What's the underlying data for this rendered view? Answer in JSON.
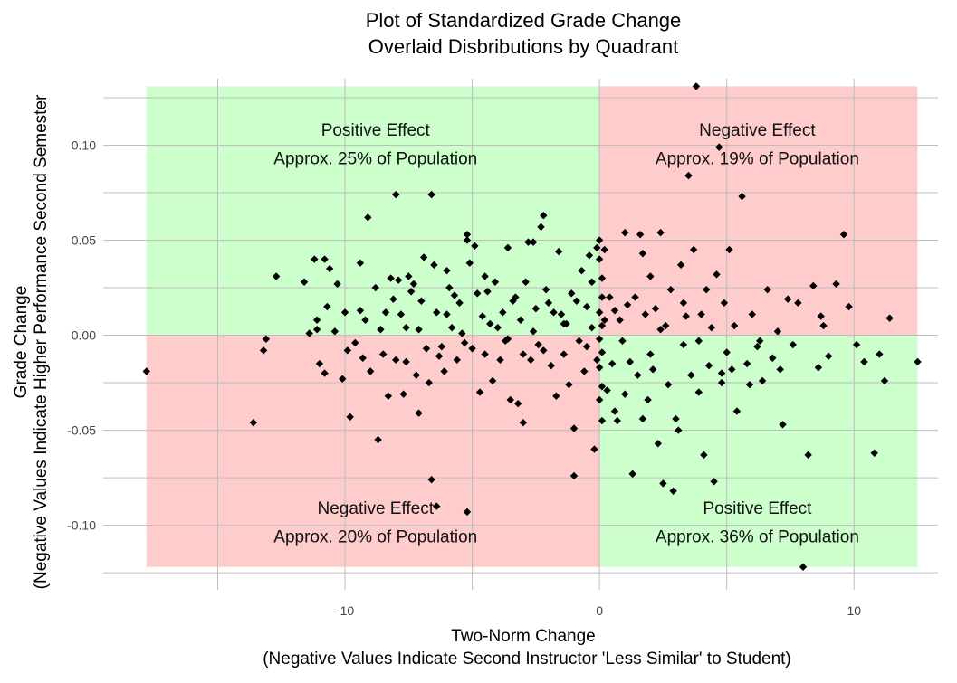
{
  "chart_data": {
    "type": "scatter",
    "title": [
      "Plot of Standardized Grade Change",
      "Overlaid Disbributions by Quadrant"
    ],
    "xlabel": [
      "Two-Norm Change",
      "(Negative Values Indicate Second Instructor 'Less Similar' to Student)"
    ],
    "ylabel": [
      "Grade Change",
      "(Negative Values Indicate Higher Performance Second Semester"
    ],
    "xlim": [
      -19.5,
      13.3
    ],
    "ylim": [
      -0.134,
      0.135
    ],
    "x_ticks": [
      -10,
      0,
      10
    ],
    "x_tick_labels": [
      "-10",
      "0",
      "10"
    ],
    "y_ticks": [
      -0.1,
      -0.05,
      0.0,
      0.05,
      0.1
    ],
    "y_tick_labels": [
      "-0.10",
      "-0.05",
      "0.00",
      "0.05",
      "0.10"
    ],
    "grid": true,
    "point_color": "#000000",
    "quadrants": [
      {
        "name": "top-left",
        "x": [
          -17.8,
          0
        ],
        "y": [
          0,
          0.131
        ],
        "color": "#ccffcc",
        "lines": [
          "Positive Effect",
          "Approx. 25% of Population"
        ]
      },
      {
        "name": "top-right",
        "x": [
          0,
          12.5
        ],
        "y": [
          0,
          0.131
        ],
        "color": "#ffcccc",
        "lines": [
          "Negative Effect",
          "Approx. 19% of Population"
        ]
      },
      {
        "name": "bottom-left",
        "x": [
          -17.8,
          0
        ],
        "y": [
          -0.122,
          0
        ],
        "color": "#ffcccc",
        "lines": [
          "Negative Effect",
          "Approx. 20% of Population"
        ]
      },
      {
        "name": "bottom-right",
        "x": [
          0,
          12.5
        ],
        "y": [
          -0.122,
          0
        ],
        "color": "#ccffcc",
        "lines": [
          "Positive Effect",
          "Approx. 36% of Population"
        ]
      }
    ],
    "quadrant_label_anchors": [
      {
        "x": -8.8,
        "y": [
          0.105,
          0.09
        ]
      },
      {
        "x": 6.2,
        "y": [
          0.105,
          0.09
        ]
      },
      {
        "x": -8.8,
        "y": [
          -0.094,
          -0.109
        ]
      },
      {
        "x": 6.2,
        "y": [
          -0.094,
          -0.109
        ]
      }
    ],
    "points": [
      [
        -17.8,
        -0.019
      ],
      [
        -13.6,
        -0.046
      ],
      [
        -13.1,
        -0.002
      ],
      [
        -13.2,
        -0.008
      ],
      [
        -12.7,
        0.031
      ],
      [
        -11.6,
        0.028
      ],
      [
        -11.4,
        0.001
      ],
      [
        -11.2,
        0.04
      ],
      [
        -11.1,
        0.003
      ],
      [
        -11.1,
        0.008
      ],
      [
        -11.0,
        -0.015
      ],
      [
        -10.8,
        -0.02
      ],
      [
        -10.8,
        0.04
      ],
      [
        -10.4,
        0.002
      ],
      [
        -10.6,
        0.035
      ],
      [
        -10.3,
        0.027
      ],
      [
        -10.0,
        0.012
      ],
      [
        -10.1,
        -0.023
      ],
      [
        -9.8,
        -0.043
      ],
      [
        -9.9,
        -0.008
      ],
      [
        -9.6,
        -0.004
      ],
      [
        -9.4,
        0.038
      ],
      [
        -9.4,
        0.013
      ],
      [
        -9.1,
        0.062
      ],
      [
        -9.2,
        0.008
      ],
      [
        -9.0,
        -0.019
      ],
      [
        -8.8,
        0.025
      ],
      [
        -8.7,
        -0.055
      ],
      [
        -8.6,
        0.003
      ],
      [
        -8.5,
        -0.01
      ],
      [
        -8.4,
        0.012
      ],
      [
        -8.3,
        -0.032
      ],
      [
        -8.2,
        0.03
      ],
      [
        -8.1,
        0.019
      ],
      [
        -8.0,
        0.074
      ],
      [
        -7.9,
        0.029
      ],
      [
        -7.8,
        0.011
      ],
      [
        -7.7,
        -0.031
      ],
      [
        -7.6,
        -0.014
      ],
      [
        -7.5,
        0.031
      ],
      [
        -7.4,
        0.023
      ],
      [
        -7.3,
        0.027
      ],
      [
        -7.2,
        -0.021
      ],
      [
        -7.1,
        0.003
      ],
      [
        -7.0,
        0.018
      ],
      [
        -6.9,
        0.041
      ],
      [
        -6.8,
        -0.007
      ],
      [
        -6.7,
        -0.025
      ],
      [
        -6.6,
        -0.076
      ],
      [
        -6.6,
        0.074
      ],
      [
        -6.5,
        0.037
      ],
      [
        -6.4,
        0.012
      ],
      [
        -6.3,
        -0.011
      ],
      [
        -6.2,
        -0.006
      ],
      [
        -6.1,
        -0.019
      ],
      [
        -6.0,
        0.011
      ],
      [
        -5.9,
        0.025
      ],
      [
        -5.8,
        0.004
      ],
      [
        -5.7,
        0.021
      ],
      [
        -5.6,
        -0.013
      ],
      [
        -5.5,
        0.017
      ],
      [
        -5.4,
        0.001
      ],
      [
        -5.3,
        -0.004
      ],
      [
        -5.2,
        0.05
      ],
      [
        -5.2,
        0.053
      ],
      [
        -5.1,
        0.038
      ],
      [
        -5.0,
        -0.007
      ],
      [
        -4.9,
        0.047
      ],
      [
        -4.8,
        0.022
      ],
      [
        -4.7,
        -0.03
      ],
      [
        -4.6,
        0.01
      ],
      [
        -4.5,
        -0.01
      ],
      [
        -4.4,
        0.023
      ],
      [
        -4.3,
        0.006
      ],
      [
        -4.2,
        -0.024
      ],
      [
        -4.1,
        0.028
      ],
      [
        -4.0,
        0.004
      ],
      [
        -3.9,
        -0.013
      ],
      [
        -3.8,
        0.012
      ],
      [
        -3.7,
        -0.003
      ],
      [
        -3.6,
        0.046
      ],
      [
        -3.5,
        -0.034
      ],
      [
        -3.4,
        0.018
      ],
      [
        -3.3,
        0.02
      ],
      [
        -3.2,
        -0.036
      ],
      [
        -3.1,
        0.008
      ],
      [
        -3.0,
        -0.01
      ],
      [
        -2.9,
        0.028
      ],
      [
        -2.8,
        0.049
      ],
      [
        -2.7,
        -0.013
      ],
      [
        -2.6,
        0.002
      ],
      [
        -2.5,
        0.014
      ],
      [
        -2.4,
        -0.005
      ],
      [
        -2.3,
        0.057
      ],
      [
        -2.2,
        0.063
      ],
      [
        -2.1,
        0.024
      ],
      [
        -2.0,
        0.017
      ],
      [
        -1.9,
        -0.016
      ],
      [
        -1.8,
        0.012
      ],
      [
        -1.7,
        -0.032
      ],
      [
        -1.6,
        0.044
      ],
      [
        -1.5,
        0.011
      ],
      [
        -1.4,
        -0.01
      ],
      [
        -1.3,
        0.006
      ],
      [
        -1.2,
        -0.026
      ],
      [
        -1.1,
        0.022
      ],
      [
        -1.0,
        -0.049
      ],
      [
        -0.9,
        0.018
      ],
      [
        -0.8,
        -0.003
      ],
      [
        -0.7,
        0.034
      ],
      [
        -0.6,
        -0.019
      ],
      [
        -0.5,
        0.015
      ],
      [
        -0.4,
        0.042
      ],
      [
        -0.3,
        0.028
      ],
      [
        -0.2,
        -0.06
      ],
      [
        -0.1,
        0.046
      ],
      [
        -0.1,
        -0.013
      ],
      [
        -0.3,
        0.004
      ],
      [
        -1.0,
        -0.074
      ],
      [
        -5.2,
        -0.093
      ],
      [
        -6.4,
        -0.09
      ],
      [
        -3.0,
        -0.046
      ],
      [
        -7.1,
        -0.041
      ],
      [
        -8.0,
        -0.013
      ],
      [
        -2.6,
        0.049
      ],
      [
        0.0,
        0.05
      ],
      [
        0.0,
        0.04
      ],
      [
        0.1,
        0.03
      ],
      [
        0.1,
        0.02
      ],
      [
        0.0,
        0.012
      ],
      [
        0.1,
        0.005
      ],
      [
        0.0,
        -0.002
      ],
      [
        0.1,
        -0.009
      ],
      [
        0.0,
        -0.017
      ],
      [
        0.1,
        -0.027
      ],
      [
        0.0,
        -0.034
      ],
      [
        0.1,
        -0.045
      ],
      [
        0.2,
        0.045
      ],
      [
        0.2,
        0.008
      ],
      [
        0.3,
        -0.029
      ],
      [
        0.4,
        0.02
      ],
      [
        0.5,
        -0.015
      ],
      [
        0.6,
        0.013
      ],
      [
        0.7,
        -0.045
      ],
      [
        0.8,
        0.008
      ],
      [
        0.9,
        -0.003
      ],
      [
        1.0,
        0.054
      ],
      [
        1.1,
        0.016
      ],
      [
        1.2,
        -0.014
      ],
      [
        1.3,
        -0.073
      ],
      [
        1.4,
        0.02
      ],
      [
        1.5,
        -0.021
      ],
      [
        1.6,
        0.053
      ],
      [
        1.7,
        -0.044
      ],
      [
        1.8,
        0.011
      ],
      [
        1.9,
        -0.034
      ],
      [
        2.0,
        0.031
      ],
      [
        2.1,
        -0.018
      ],
      [
        2.2,
        0.014
      ],
      [
        2.3,
        -0.057
      ],
      [
        2.4,
        0.054
      ],
      [
        2.5,
        -0.078
      ],
      [
        2.6,
        0.005
      ],
      [
        2.7,
        -0.026
      ],
      [
        2.8,
        0.024
      ],
      [
        2.9,
        -0.082
      ],
      [
        3.0,
        -0.044
      ],
      [
        3.1,
        -0.05
      ],
      [
        3.2,
        0.037
      ],
      [
        3.3,
        -0.005
      ],
      [
        3.4,
        0.01
      ],
      [
        3.5,
        0.084
      ],
      [
        3.6,
        -0.021
      ],
      [
        3.7,
        0.045
      ],
      [
        3.8,
        0.131
      ],
      [
        3.9,
        -0.03
      ],
      [
        4.0,
        0.011
      ],
      [
        4.1,
        -0.063
      ],
      [
        4.2,
        0.024
      ],
      [
        4.3,
        -0.016
      ],
      [
        4.4,
        0.004
      ],
      [
        4.5,
        -0.077
      ],
      [
        4.6,
        0.032
      ],
      [
        4.7,
        0.099
      ],
      [
        4.8,
        -0.025
      ],
      [
        4.9,
        0.017
      ],
      [
        5.0,
        -0.009
      ],
      [
        5.1,
        0.045
      ],
      [
        5.2,
        -0.018
      ],
      [
        5.4,
        -0.04
      ],
      [
        5.6,
        0.073
      ],
      [
        5.8,
        -0.015
      ],
      [
        6.0,
        0.011
      ],
      [
        6.2,
        -0.006
      ],
      [
        6.4,
        -0.024
      ],
      [
        6.6,
        0.024
      ],
      [
        6.8,
        -0.012
      ],
      [
        7.0,
        0.002
      ],
      [
        7.2,
        -0.047
      ],
      [
        7.4,
        0.019
      ],
      [
        7.6,
        -0.005
      ],
      [
        7.8,
        0.017
      ],
      [
        8.0,
        -0.122
      ],
      [
        8.2,
        -0.063
      ],
      [
        8.4,
        0.026
      ],
      [
        8.6,
        -0.017
      ],
      [
        8.8,
        0.005
      ],
      [
        9.0,
        -0.011
      ],
      [
        9.3,
        0.027
      ],
      [
        9.6,
        0.053
      ],
      [
        9.8,
        0.015
      ],
      [
        10.1,
        -0.005
      ],
      [
        10.4,
        -0.014
      ],
      [
        10.8,
        -0.062
      ],
      [
        11.0,
        -0.01
      ],
      [
        11.2,
        -0.024
      ],
      [
        11.4,
        0.009
      ],
      [
        12.5,
        -0.014
      ],
      [
        4.8,
        -0.02
      ],
      [
        6.3,
        -0.003
      ],
      [
        2.0,
        -0.01
      ],
      [
        1.0,
        -0.031
      ],
      [
        3.3,
        0.017
      ],
      [
        5.3,
        0.005
      ],
      [
        7.1,
        -0.018
      ],
      [
        8.7,
        0.01
      ],
      [
        -0.5,
        -0.006
      ],
      [
        -1.4,
        0.006
      ],
      [
        -2.2,
        -0.008
      ],
      [
        -3.6,
        -0.002
      ],
      [
        -4.5,
        0.031
      ],
      [
        -6.0,
        0.034
      ],
      [
        -7.6,
        0.004
      ],
      [
        -9.3,
        -0.012
      ],
      [
        -10.7,
        0.015
      ],
      [
        2.4,
        0.003
      ],
      [
        3.9,
        -0.003
      ],
      [
        5.9,
        -0.026
      ],
      [
        0.6,
        -0.04
      ],
      [
        1.7,
        0.043
      ]
    ]
  }
}
